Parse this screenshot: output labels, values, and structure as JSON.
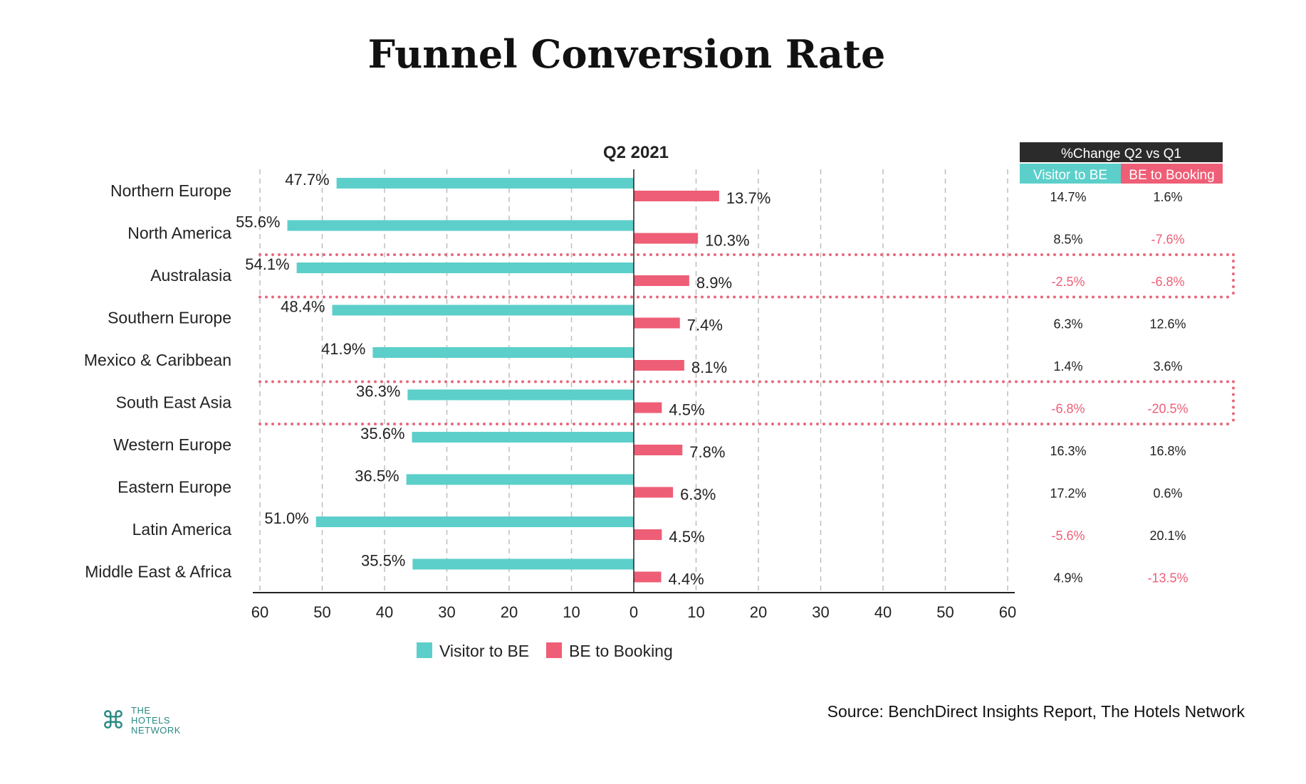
{
  "title": "Funnel Conversion Rate",
  "source": "Source: BenchDirect Insights Report, The Hotels Network",
  "logo": {
    "mark": "⌘",
    "line1": "THE",
    "line2": "HOTELS",
    "line3": "NETWORK"
  },
  "colors": {
    "visitor": "#5ccfca",
    "booking": "#ee5e76",
    "table_header": "#2b2b2b",
    "negative": "#ee5e76",
    "dotted": "#e8677c"
  },
  "chart_data": {
    "type": "bar",
    "orientation": "horizontal-diverging",
    "title": "Q2 2021",
    "categories": [
      "Northern Europe",
      "North America",
      "Australasia",
      "Southern Europe",
      "Mexico & Caribbean",
      "South East Asia",
      "Western Europe",
      "Eastern Europe",
      "Latin America",
      "Middle East & Africa"
    ],
    "series": [
      {
        "name": "Visitor to BE",
        "values": [
          47.7,
          55.6,
          54.1,
          48.4,
          41.9,
          36.3,
          35.6,
          36.5,
          51.0,
          35.5
        ],
        "labels": [
          "47.7%",
          "55.6%",
          "54.1%",
          "48.4%",
          "41.9%",
          "36.3%",
          "35.6%",
          "36.5%",
          "51.0%",
          "35.5%"
        ],
        "direction": "left"
      },
      {
        "name": "BE to Booking",
        "values": [
          13.7,
          10.3,
          8.9,
          7.4,
          8.1,
          4.5,
          7.8,
          6.3,
          4.5,
          4.4
        ],
        "labels": [
          "13.7%",
          "10.3%",
          "8.9%",
          "7.4%",
          "8.1%",
          "4.5%",
          "7.8%",
          "6.3%",
          "4.5%",
          "4.4%"
        ],
        "direction": "right"
      }
    ],
    "xlim": [
      -60,
      60
    ],
    "xticks": [
      "60",
      "50",
      "40",
      "30",
      "20",
      "10",
      "0",
      "10",
      "20",
      "30",
      "40",
      "50",
      "60"
    ],
    "grid": "vertical dashed",
    "legend": "bottom",
    "highlighted_rows": [
      "Australasia",
      "South East Asia"
    ],
    "change_table": {
      "title": "%Change Q2 vs Q1",
      "columns": [
        "Visitor to BE",
        "BE to Booking"
      ],
      "rows": [
        [
          "14.7%",
          "1.6%"
        ],
        [
          "8.5%",
          "-7.6%"
        ],
        [
          "-2.5%",
          "-6.8%"
        ],
        [
          "6.3%",
          "12.6%"
        ],
        [
          "1.4%",
          "3.6%"
        ],
        [
          "-6.8%",
          "-20.5%"
        ],
        [
          "16.3%",
          "16.8%"
        ],
        [
          "17.2%",
          "0.6%"
        ],
        [
          "-5.6%",
          "20.1%"
        ],
        [
          "4.9%",
          "-13.5%"
        ]
      ]
    }
  }
}
